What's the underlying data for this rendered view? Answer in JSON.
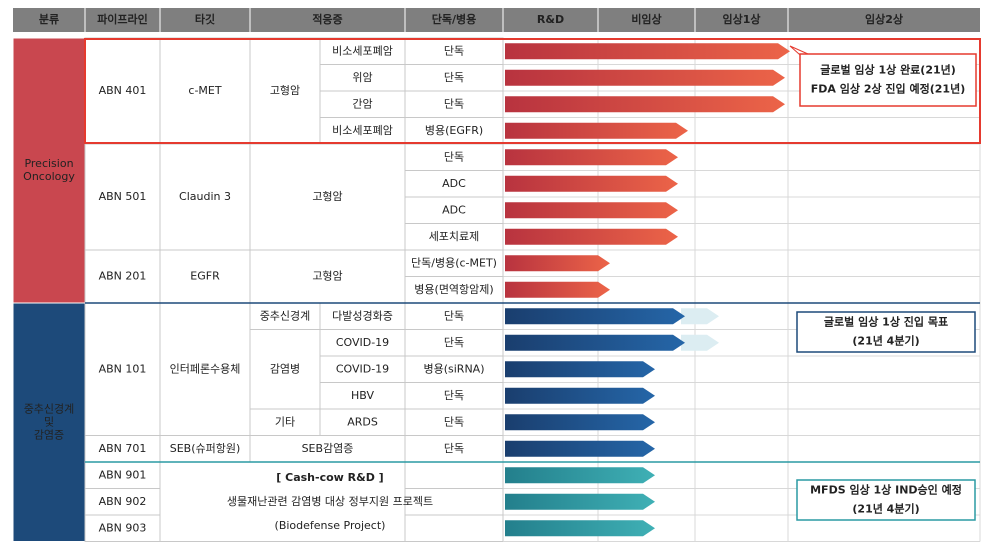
{
  "header": [
    "분류",
    "파이프라인",
    "타깃",
    "적응증",
    "단독/병용",
    "R&D",
    "비임상",
    "임상1상",
    "임상2상"
  ],
  "groups": [
    [
      "Precision",
      "Oncology"
    ],
    [
      "중추신경계",
      "및",
      "감염증"
    ]
  ],
  "pipelines": [
    "ABN 401",
    "ABN 501",
    "ABN 201",
    "ABN 101",
    "ABN 701",
    "ABN 901",
    "ABN 902",
    "ABN 903"
  ],
  "targets": [
    "c-MET",
    "Claudin 3",
    "EGFR",
    "인터페론수용체",
    "SEB(슈퍼항원)"
  ],
  "indication_groups": [
    "고형암",
    "고형암",
    "고형암",
    "중추신경계",
    "감염병",
    "기타",
    "SEB감염증"
  ],
  "indications": [
    "비소세포폐암",
    "위암",
    "간암",
    "비소세포폐암",
    "다발성경화증",
    "COVID-19",
    "COVID-19",
    "HBV",
    "ARDS"
  ],
  "modes": [
    "단독",
    "단독",
    "단독",
    "병용(EGFR)",
    "단독",
    "ADC",
    "ADC",
    "세포치료제",
    "단독/병용(c-MET)",
    "병용(면역항암제)",
    "단독",
    "단독",
    "병용(siRNA)",
    "단독",
    "단독",
    "단독",
    "",
    "",
    ""
  ],
  "notes": [
    [
      "글로벌 임상 1상 완료(21년)",
      "FDA 임상 2상 진입 예정(21년)"
    ],
    [
      "글로벌 임상 1상 진입 목표",
      "(21년 4분기)"
    ],
    [
      "MFDS 임상 1상 IND승인 예정",
      "(21년 4분기)"
    ]
  ],
  "project": {
    "tag": "[ Cash-cow R&D ]",
    "title": "생물재난관련  감염병 대상 정부지원 프로젝트",
    "subtitle": "(Biodefense Project)"
  }
}
